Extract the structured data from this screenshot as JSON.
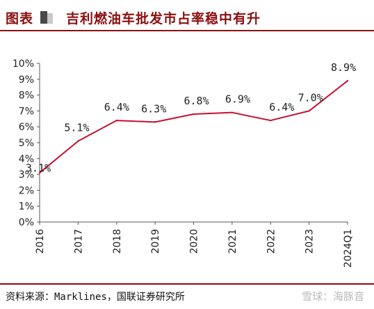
{
  "header": {
    "figure_label": "图表",
    "title": "吉利燃油车批发市占率稳中有升"
  },
  "footer": {
    "source": "资料来源：Marklines，国联证券研究所",
    "watermark": "雪球：海豚音"
  },
  "colors": {
    "accent": "#8b0f10",
    "line": "#c8102e"
  },
  "chart_data": {
    "type": "line",
    "title": "吉利燃油车批发市占率稳中有升",
    "xlabel": "",
    "ylabel": "",
    "categories": [
      "2016",
      "2017",
      "2018",
      "2019",
      "2020",
      "2021",
      "2022",
      "2023",
      "2024Q1"
    ],
    "series": [
      {
        "values": [
          3.1,
          5.1,
          6.4,
          6.3,
          6.8,
          6.9,
          6.4,
          7.0,
          8.9
        ],
        "labels": [
          "3.1%",
          "5.1%",
          "6.4%",
          "6.3%",
          "6.8%",
          "6.9%",
          "6.4%",
          "7.0%",
          "8.9%"
        ]
      }
    ],
    "ylim": [
      0,
      10
    ],
    "yticks": [
      "0%",
      "1%",
      "2%",
      "3%",
      "4%",
      "5%",
      "6%",
      "7%",
      "8%",
      "9%",
      "10%"
    ],
    "grid": false,
    "legend": "none"
  }
}
